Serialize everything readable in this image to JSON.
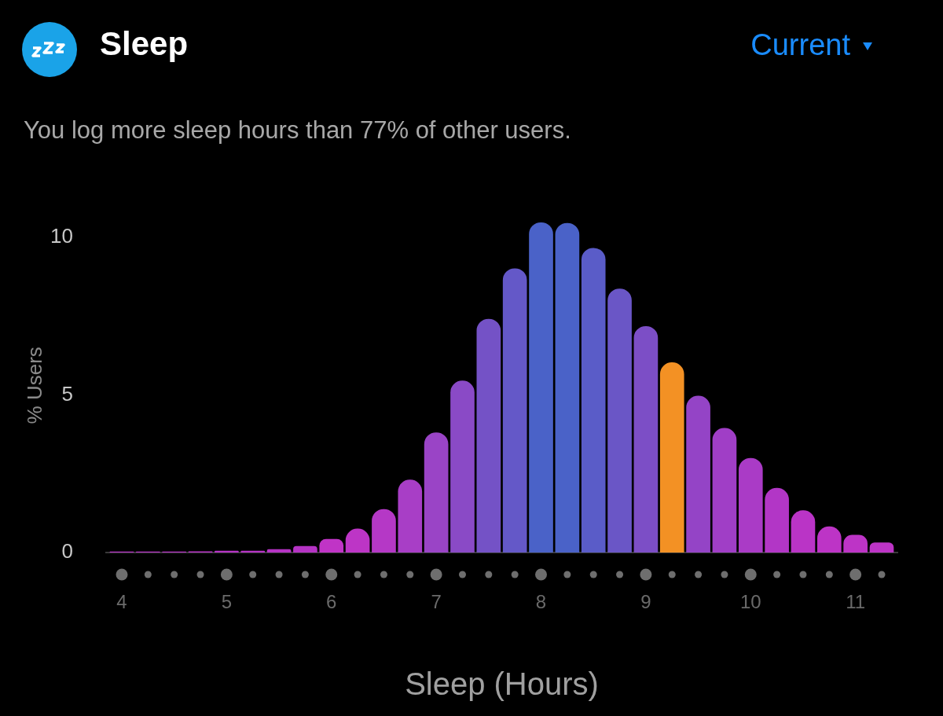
{
  "chart_data": {
    "type": "bar",
    "title": "Sleep",
    "subtitle": "You log more sleep hours than 77% of other users.",
    "annotations": [
      "Current"
    ],
    "xlabel": "Sleep (Hours)",
    "ylabel": "% Users",
    "x": [
      4,
      4.25,
      4.5,
      4.75,
      5,
      5.25,
      5.5,
      5.75,
      6,
      6.25,
      6.5,
      6.75,
      7,
      7.25,
      7.5,
      7.75,
      8,
      8.25,
      8.5,
      8.75,
      9,
      9.25,
      9.5,
      9.75,
      10,
      10.25,
      10.5,
      10.75,
      11,
      11.25
    ],
    "values": [
      0.02,
      0.02,
      0.02,
      0.03,
      0.05,
      0.05,
      0.1,
      0.2,
      0.42,
      0.75,
      1.37,
      2.3,
      3.8,
      5.44,
      7.4,
      9.0,
      10.46,
      10.44,
      9.65,
      8.36,
      7.17,
      6.02,
      4.96,
      3.94,
      2.99,
      2.04,
      1.33,
      0.82,
      0.55,
      0.31
    ],
    "colors": [
      "#b533c4",
      "#b533c4",
      "#b533c4",
      "#b533c4",
      "#b533c4",
      "#b533c4",
      "#b533c4",
      "#b533c4",
      "#c034c6",
      "#bd35c6",
      "#b538c6",
      "#a83ec6",
      "#9a44c6",
      "#8a4ac6",
      "#7452c6",
      "#6458c8",
      "#4a62c8",
      "#4a62c8",
      "#5a5cc8",
      "#6a56c6",
      "#7c4ec6",
      "#f39124",
      "#9444c6",
      "#a03ec6",
      "#aa3bc6",
      "#b236c6",
      "#ba34c6",
      "#bd34c6",
      "#bd34c6",
      "#bd34c6"
    ],
    "xlim": [
      3.85,
      11.4
    ],
    "xticks": [
      4,
      5,
      6,
      7,
      8,
      9,
      10,
      11
    ],
    "ylim": [
      0,
      10.6
    ],
    "yticks": [
      0,
      5,
      10
    ],
    "grid": false,
    "legend": false
  }
}
